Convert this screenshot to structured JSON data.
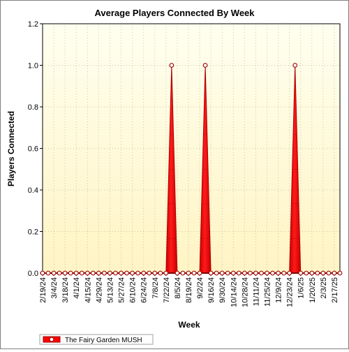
{
  "chart_data": {
    "type": "area",
    "title": "Average Players Connected By Week",
    "xlabel": "Week",
    "ylabel": "Players Connected",
    "ylim": [
      0,
      1.2
    ],
    "yticks": [
      "0.0",
      "0.2",
      "0.4",
      "0.6",
      "0.8",
      "1.0",
      "1.2"
    ],
    "grid": true,
    "legend_position": "bottom-left",
    "x_tick_labels": [
      "2/19/24",
      "3/4/24",
      "3/18/24",
      "4/1/24",
      "4/15/24",
      "4/29/24",
      "5/13/24",
      "5/27/24",
      "6/10/24",
      "6/24/24",
      "7/8/24",
      "7/22/24",
      "8/5/24",
      "8/19/24",
      "9/2/24",
      "9/16/24",
      "9/30/24",
      "10/14/24",
      "10/28/24",
      "11/11/24",
      "11/25/24",
      "12/9/24",
      "12/23/24",
      "1/6/25",
      "1/20/25",
      "2/3/25",
      "2/17/25"
    ],
    "x": [
      "2/19/24",
      "2/26/24",
      "3/4/24",
      "3/11/24",
      "3/18/24",
      "3/25/24",
      "4/1/24",
      "4/8/24",
      "4/15/24",
      "4/22/24",
      "4/29/24",
      "5/6/24",
      "5/13/24",
      "5/20/24",
      "5/27/24",
      "6/3/24",
      "6/10/24",
      "6/17/24",
      "6/24/24",
      "7/1/24",
      "7/8/24",
      "7/15/24",
      "7/22/24",
      "7/29/24",
      "8/5/24",
      "8/12/24",
      "8/19/24",
      "8/26/24",
      "9/2/24",
      "9/9/24",
      "9/16/24",
      "9/23/24",
      "9/30/24",
      "10/7/24",
      "10/14/24",
      "10/21/24",
      "10/28/24",
      "11/4/24",
      "11/11/24",
      "11/18/24",
      "11/25/24",
      "12/2/24",
      "12/9/24",
      "12/16/24",
      "12/23/24",
      "12/30/24",
      "1/6/25",
      "1/13/25",
      "1/20/25",
      "1/27/25",
      "2/3/25",
      "2/10/25",
      "2/17/25",
      "2/24/25"
    ],
    "series": [
      {
        "name": "The Fairy Garden MUSH",
        "color": "#ff0000",
        "values": [
          0,
          0,
          0,
          0,
          0,
          0,
          0,
          0,
          0,
          0,
          0,
          0,
          0,
          0,
          0,
          0,
          0,
          0,
          0,
          0,
          0,
          0,
          0,
          1,
          0,
          0,
          0,
          0,
          0,
          1,
          0,
          0,
          0,
          0,
          0,
          0,
          0,
          0,
          0,
          0,
          0,
          0,
          0,
          0,
          0,
          1,
          0,
          0,
          0,
          0,
          0,
          0,
          0,
          0
        ]
      }
    ]
  },
  "colors": {
    "plot_bg_top": "#fffff0",
    "plot_bg_bottom": "#fff4c4",
    "fill": "#ff0000",
    "fill_edge": "#b00000",
    "marker_edge": "#a00000"
  }
}
